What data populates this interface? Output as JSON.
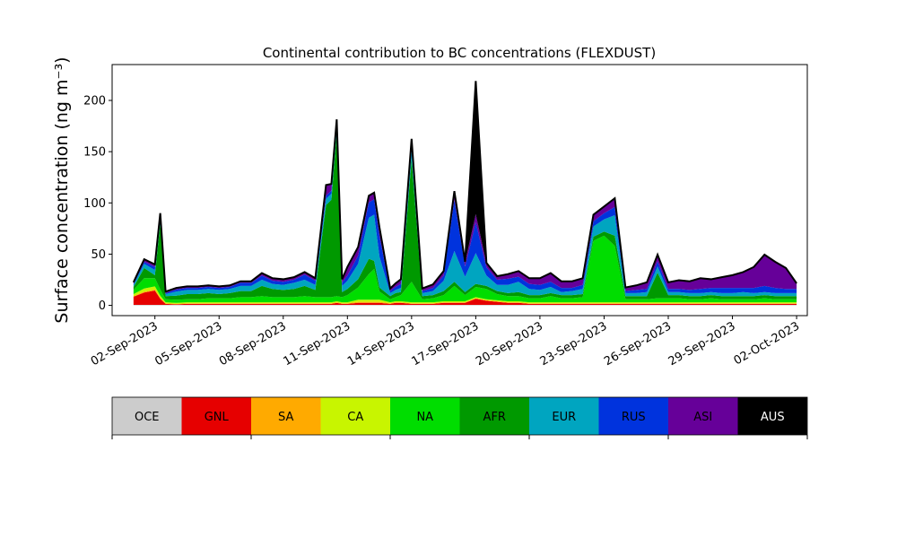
{
  "chart_data": {
    "type": "area",
    "stacked": true,
    "title": "Continental contribution to BC concentrations (FLEXDUST)",
    "ylabel": "Surface concentration (ng m⁻³)",
    "xlabel": "",
    "ylim": [
      -10,
      235
    ],
    "yticks": [
      0,
      50,
      100,
      150,
      200
    ],
    "xlim": [
      "2023-08-31",
      "2023-10-02T12:00"
    ],
    "xtick_labels": [
      "02-Sep-2023",
      "05-Sep-2023",
      "08-Sep-2023",
      "11-Sep-2023",
      "14-Sep-2023",
      "17-Sep-2023",
      "20-Sep-2023",
      "23-Sep-2023",
      "26-Sep-2023",
      "29-Sep-2023",
      "02-Oct-2023"
    ],
    "xtick_dates": [
      "2023-09-02",
      "2023-09-05",
      "2023-09-08",
      "2023-09-11",
      "2023-09-14",
      "2023-09-17",
      "2023-09-20",
      "2023-09-23",
      "2023-09-26",
      "2023-09-29",
      "2023-10-02"
    ],
    "x": [
      "2023-09-01T00:00",
      "2023-09-01T12:00",
      "2023-09-02T00:00",
      "2023-09-02T06:00",
      "2023-09-02T12:00",
      "2023-09-03T00:00",
      "2023-09-03T12:00",
      "2023-09-04T00:00",
      "2023-09-04T12:00",
      "2023-09-05T00:00",
      "2023-09-05T12:00",
      "2023-09-06T00:00",
      "2023-09-06T12:00",
      "2023-09-07T00:00",
      "2023-09-07T12:00",
      "2023-09-08T00:00",
      "2023-09-08T12:00",
      "2023-09-09T00:00",
      "2023-09-09T12:00",
      "2023-09-10T00:00",
      "2023-09-10T06:00",
      "2023-09-10T12:00",
      "2023-09-10T18:00",
      "2023-09-11T00:00",
      "2023-09-11T12:00",
      "2023-09-12T00:00",
      "2023-09-12T06:00",
      "2023-09-12T12:00",
      "2023-09-13T00:00",
      "2023-09-13T06:00",
      "2023-09-13T12:00",
      "2023-09-14T00:00",
      "2023-09-14T12:00",
      "2023-09-15T00:00",
      "2023-09-15T12:00",
      "2023-09-16T00:00",
      "2023-09-16T12:00",
      "2023-09-17T00:00",
      "2023-09-17T12:00",
      "2023-09-18T00:00",
      "2023-09-18T12:00",
      "2023-09-19T00:00",
      "2023-09-19T12:00",
      "2023-09-20T00:00",
      "2023-09-20T12:00",
      "2023-09-21T00:00",
      "2023-09-21T12:00",
      "2023-09-22T00:00",
      "2023-09-22T12:00",
      "2023-09-23T00:00",
      "2023-09-23T12:00",
      "2023-09-24T00:00",
      "2023-09-24T12:00",
      "2023-09-25T00:00",
      "2023-09-25T12:00",
      "2023-09-26T00:00",
      "2023-09-26T12:00",
      "2023-09-27T00:00",
      "2023-09-27T12:00",
      "2023-09-28T00:00",
      "2023-09-28T12:00",
      "2023-09-29T00:00",
      "2023-09-29T12:00",
      "2023-09-30T00:00",
      "2023-09-30T12:00",
      "2023-10-01T00:00",
      "2023-10-01T12:00",
      "2023-10-02T00:00"
    ],
    "series": [
      {
        "name": "OCE",
        "color": "#cccccc",
        "values": [
          0.5,
          0.5,
          0.5,
          0.5,
          0.5,
          0.5,
          0.5,
          0.5,
          0.5,
          0.5,
          0.5,
          0.5,
          0.5,
          0.5,
          0.5,
          0.5,
          0.5,
          0.5,
          0.5,
          0.5,
          0.5,
          0.5,
          0.5,
          0.5,
          0.5,
          0.5,
          0.5,
          0.5,
          0.5,
          0.5,
          0.5,
          0.5,
          0.5,
          0.5,
          0.5,
          0.5,
          0.5,
          0.5,
          0.5,
          0.5,
          0.5,
          0.5,
          0.5,
          0.5,
          0.5,
          0.5,
          0.5,
          0.5,
          0.5,
          0.5,
          0.5,
          0.5,
          0.5,
          0.5,
          0.5,
          0.5,
          0.5,
          0.5,
          0.5,
          0.5,
          0.5,
          0.5,
          0.5,
          0.5,
          0.5,
          0.5,
          0.5,
          0.5
        ]
      },
      {
        "name": "GNL",
        "color": "#e60000",
        "values": [
          8,
          12,
          14,
          6,
          1,
          0.5,
          1,
          1,
          1,
          1,
          1,
          1,
          1,
          1,
          1,
          1,
          1,
          1,
          1,
          1,
          1,
          2,
          1,
          1,
          2,
          2,
          2,
          2,
          1,
          2,
          2,
          1,
          1,
          1,
          2,
          2,
          2,
          6,
          4,
          3,
          2,
          2,
          1,
          1,
          1,
          1,
          1,
          1,
          1,
          1,
          1,
          1,
          1,
          1,
          1,
          1,
          1,
          1,
          1,
          1,
          1,
          1,
          1,
          1,
          1,
          1,
          1,
          1
        ]
      },
      {
        "name": "SA",
        "color": "#ffaa00",
        "values": [
          0.5,
          1,
          1,
          1,
          0.5,
          0.5,
          0.5,
          0.5,
          0.5,
          0.5,
          0.5,
          0.5,
          0.5,
          0.5,
          0.5,
          0.5,
          0.5,
          0.5,
          0.5,
          0.5,
          0.5,
          0.5,
          0.5,
          0.5,
          1,
          1,
          1,
          1,
          0.5,
          0.5,
          0.5,
          0.5,
          0.5,
          0.5,
          0.5,
          0.5,
          0.5,
          0.5,
          0.5,
          0.5,
          0.5,
          0.5,
          0.5,
          0.5,
          0.5,
          0.5,
          0.5,
          0.5,
          0.5,
          0.5,
          0.5,
          0.5,
          0.5,
          0.5,
          0.5,
          0.5,
          0.5,
          0.5,
          0.5,
          0.5,
          0.5,
          0.5,
          0.5,
          0.5,
          0.5,
          0.5,
          0.5,
          0.5
        ]
      },
      {
        "name": "CA",
        "color": "#c8f500",
        "values": [
          2,
          3,
          3,
          2,
          1,
          1,
          1,
          1,
          1,
          1,
          1,
          1,
          1,
          1,
          1,
          1,
          1,
          1,
          1,
          1,
          1,
          1,
          1,
          1,
          2,
          2,
          2,
          2,
          1,
          1,
          1,
          1,
          1,
          1,
          1,
          1,
          1,
          1,
          1,
          1,
          1,
          1,
          1,
          1,
          1,
          1,
          1,
          1,
          1,
          1,
          1,
          1,
          1,
          1,
          1,
          1,
          1,
          1,
          1,
          1,
          1,
          1,
          1,
          1,
          1,
          1,
          1,
          1
        ]
      },
      {
        "name": "NA",
        "color": "#00dd00",
        "values": [
          4,
          10,
          8,
          6,
          3,
          3,
          3,
          3,
          4,
          4,
          4,
          5,
          5,
          6,
          5,
          5,
          5,
          6,
          5,
          5,
          5,
          5,
          5,
          7,
          12,
          25,
          30,
          8,
          3,
          4,
          6,
          20,
          3,
          4,
          6,
          15,
          6,
          10,
          10,
          6,
          5,
          5,
          4,
          4,
          6,
          4,
          4,
          5,
          60,
          65,
          55,
          3,
          3,
          3,
          4,
          4,
          4,
          3,
          3,
          4,
          3,
          3,
          3,
          3,
          4,
          3,
          3,
          3
        ]
      },
      {
        "name": "AFR",
        "color": "#009900",
        "values": [
          3,
          10,
          3,
          65,
          3,
          4,
          5,
          5,
          5,
          4,
          5,
          6,
          6,
          10,
          8,
          7,
          8,
          10,
          7,
          90,
          95,
          160,
          5,
          6,
          8,
          15,
          8,
          4,
          3,
          4,
          3,
          120,
          3,
          3,
          4,
          4,
          3,
          3,
          3,
          3,
          3,
          4,
          3,
          3,
          3,
          3,
          3,
          3,
          4,
          4,
          10,
          3,
          3,
          3,
          25,
          3,
          3,
          3,
          3,
          3,
          3,
          3,
          3,
          3,
          3,
          3,
          3,
          3
        ]
      },
      {
        "name": "EUR",
        "color": "#00a5c0",
        "values": [
          2,
          4,
          5,
          6,
          2,
          4,
          4,
          4,
          4,
          4,
          4,
          5,
          5,
          6,
          5,
          5,
          6,
          6,
          5,
          6,
          6,
          6,
          6,
          8,
          15,
          40,
          45,
          30,
          3,
          3,
          4,
          8,
          3,
          4,
          10,
          30,
          15,
          30,
          10,
          6,
          8,
          10,
          6,
          5,
          6,
          3,
          4,
          5,
          10,
          12,
          20,
          3,
          3,
          4,
          6,
          3,
          3,
          3,
          3,
          3,
          3,
          3,
          4,
          3,
          3,
          3,
          3,
          3
        ]
      },
      {
        "name": "RUS",
        "color": "#0033dd",
        "values": [
          1,
          2,
          3,
          2,
          1,
          2,
          2,
          2,
          2,
          2,
          2,
          3,
          3,
          4,
          3,
          3,
          3,
          5,
          4,
          3,
          3,
          3,
          3,
          5,
          8,
          15,
          15,
          20,
          2,
          3,
          4,
          6,
          2,
          3,
          5,
          50,
          10,
          30,
          8,
          5,
          6,
          5,
          5,
          5,
          5,
          4,
          3,
          4,
          5,
          6,
          8,
          2,
          3,
          3,
          5,
          3,
          3,
          3,
          4,
          4,
          5,
          5,
          4,
          5,
          6,
          5,
          4,
          4
        ]
      },
      {
        "name": "ASI",
        "color": "#660099",
        "values": [
          1,
          2,
          2,
          1,
          1,
          1,
          1,
          1,
          1,
          1,
          1,
          1,
          1,
          2,
          2,
          2,
          2,
          2,
          2,
          10,
          6,
          3,
          3,
          8,
          8,
          6,
          6,
          8,
          2,
          3,
          4,
          5,
          2,
          3,
          4,
          8,
          4,
          8,
          4,
          3,
          4,
          5,
          5,
          6,
          8,
          6,
          6,
          6,
          6,
          6,
          8,
          3,
          4,
          6,
          6,
          6,
          8,
          8,
          10,
          8,
          10,
          12,
          15,
          20,
          30,
          25,
          20,
          5
        ]
      },
      {
        "name": "AUS",
        "color": "#000000",
        "values": [
          0.5,
          0.5,
          0.5,
          0.5,
          0.5,
          0.5,
          0.5,
          0.5,
          0.5,
          0.5,
          0.5,
          0.5,
          0.5,
          0.5,
          0.5,
          0.5,
          0.5,
          0.5,
          0.5,
          0.5,
          0.5,
          0.5,
          0.5,
          0.5,
          0.5,
          0.5,
          0.5,
          0.5,
          0.5,
          0.5,
          0.5,
          0.5,
          0.5,
          0.5,
          0.5,
          0.5,
          0.5,
          130,
          0.5,
          0.5,
          0.5,
          0.5,
          0.5,
          0.5,
          0.5,
          0.5,
          0.5,
          0.5,
          0.5,
          0.5,
          0.5,
          0.5,
          0.5,
          0.5,
          0.5,
          0.5,
          0.5,
          0.5,
          0.5,
          0.5,
          0.5,
          0.5,
          0.5,
          0.5,
          0.5,
          0.5,
          0.5,
          0.5
        ]
      }
    ],
    "legend_placement": "bottom colorbar",
    "legend_labels": [
      "OCE",
      "GNL",
      "SA",
      "CA",
      "NA",
      "AFR",
      "EUR",
      "RUS",
      "ASI",
      "AUS"
    ]
  }
}
